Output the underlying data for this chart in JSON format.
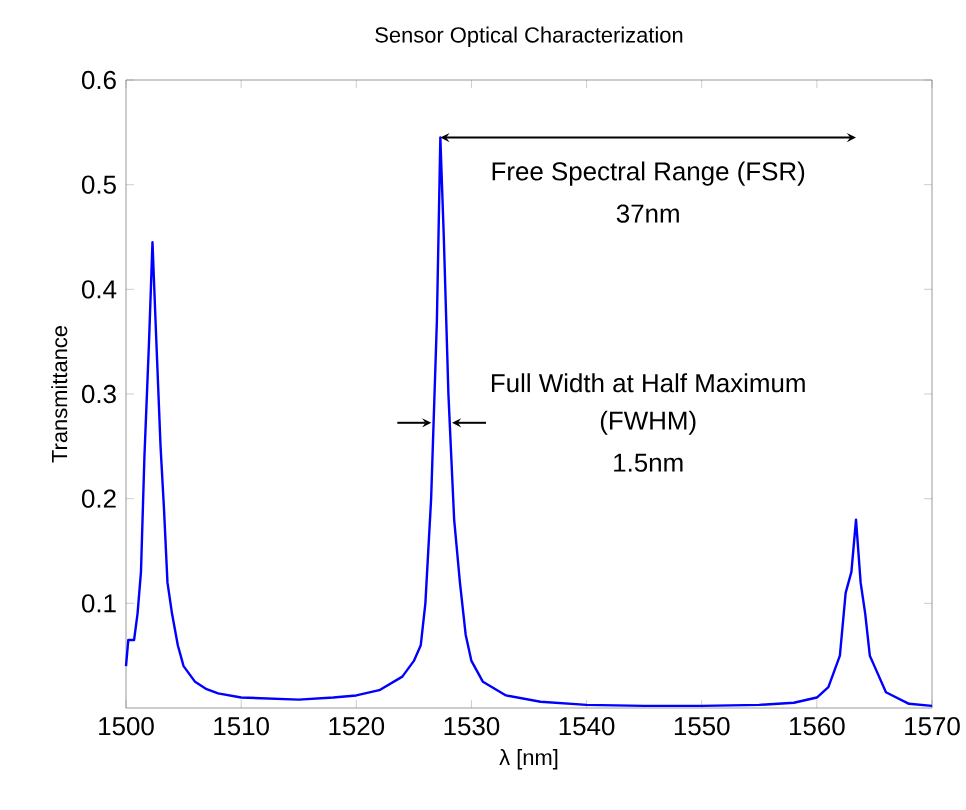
{
  "chart_data": {
    "type": "line",
    "title": "Sensor Optical Characterization",
    "xlabel": "λ [nm]",
    "ylabel": "Transmittance",
    "xlim": [
      1500,
      1570
    ],
    "ylim": [
      0,
      0.6
    ],
    "xticks": [
      1500,
      1510,
      1520,
      1530,
      1540,
      1550,
      1560,
      1570
    ],
    "yticks": [
      0.1,
      0.2,
      0.3,
      0.4,
      0.5,
      0.6
    ],
    "grid": false,
    "series": [
      {
        "color": "#0000ff",
        "x": [
          1500,
          1500.2,
          1500.7,
          1501,
          1501.3,
          1501.6,
          1502,
          1502.3,
          1502.6,
          1503,
          1503.3,
          1503.6,
          1504,
          1504.5,
          1505,
          1506,
          1507,
          1508,
          1510,
          1515,
          1518,
          1520,
          1522,
          1524,
          1525,
          1525.6,
          1526,
          1526.5,
          1527,
          1527.3,
          1527.6,
          1528,
          1528.5,
          1529,
          1529.5,
          1530,
          1531,
          1533,
          1536,
          1540,
          1545,
          1550,
          1555,
          1558,
          1560,
          1561,
          1562,
          1562.5,
          1563,
          1563.4,
          1563.8,
          1564.2,
          1564.6,
          1565,
          1566,
          1568,
          1570
        ],
        "values": [
          0.04,
          0.065,
          0.065,
          0.09,
          0.13,
          0.24,
          0.35,
          0.445,
          0.36,
          0.25,
          0.19,
          0.12,
          0.09,
          0.06,
          0.04,
          0.025,
          0.018,
          0.014,
          0.01,
          0.008,
          0.01,
          0.012,
          0.017,
          0.03,
          0.045,
          0.06,
          0.1,
          0.2,
          0.37,
          0.545,
          0.45,
          0.3,
          0.18,
          0.12,
          0.07,
          0.045,
          0.025,
          0.012,
          0.006,
          0.003,
          0.002,
          0.002,
          0.003,
          0.005,
          0.01,
          0.02,
          0.05,
          0.11,
          0.13,
          0.18,
          0.12,
          0.09,
          0.05,
          0.04,
          0.015,
          0.004,
          0.002
        ]
      }
    ],
    "annotations": [
      "Free Spectral Range (FSR)",
      "37nm",
      "Full Width at Half Maximum",
      "(FWHM)",
      "1.5nm"
    ]
  }
}
